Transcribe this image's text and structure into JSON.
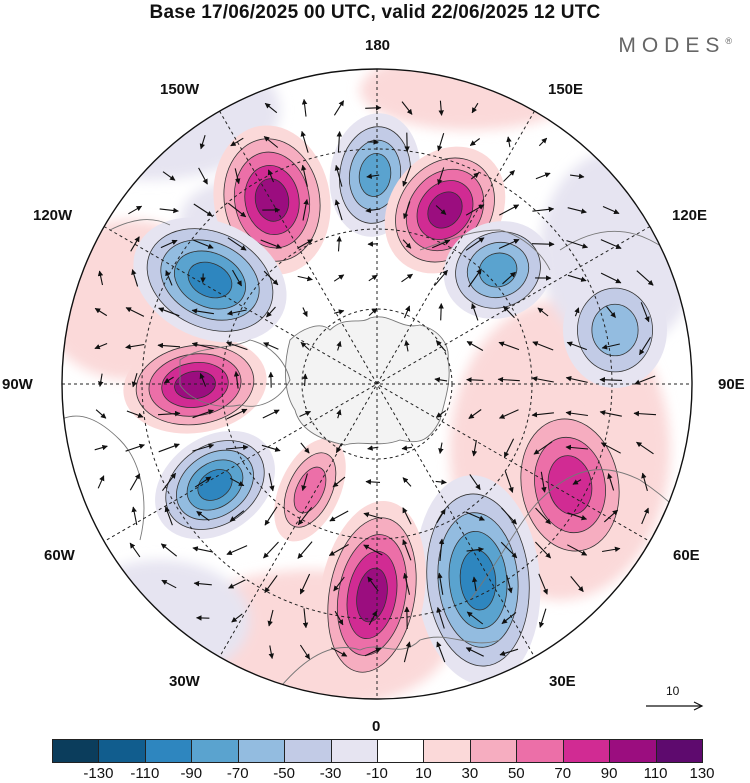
{
  "title": "Base 17/06/2025 00 UTC, valid 22/06/2025 12 UTC",
  "logo": "MODES",
  "logo_mark": "®",
  "longitude_labels": {
    "n180": "180",
    "w150": "150W",
    "e150": "150E",
    "w120": "120W",
    "e120": "120E",
    "w90": "90W",
    "e90": "90E",
    "w60": "60W",
    "e60": "60E",
    "w30": "30W",
    "e30": "30E",
    "s0": "0"
  },
  "vector_scale": {
    "label": "10"
  },
  "colorbar": {
    "colors": [
      "#0b3d5c",
      "#115d8e",
      "#2e86bf",
      "#5aa3cf",
      "#93bce0",
      "#c2cbe6",
      "#e6e4f1",
      "#ffffff",
      "#fbd9d9",
      "#f6adc0",
      "#ec6fa8",
      "#d12b93",
      "#9b0d7f",
      "#5e0a6e"
    ],
    "ticks": [
      "-130",
      "-110",
      "-90",
      "-70",
      "-50",
      "-30",
      "-10",
      "10",
      "30",
      "50",
      "70",
      "90",
      "110",
      "130"
    ]
  },
  "anomaly_centers": [
    {
      "name": "alaska-high",
      "sign": "positive",
      "strength": "strong"
    },
    {
      "name": "bering-low",
      "sign": "negative",
      "strength": "moderate"
    },
    {
      "name": "east-siberia-high",
      "sign": "positive",
      "strength": "strong"
    },
    {
      "name": "central-siberia-low",
      "sign": "negative",
      "strength": "moderate"
    },
    {
      "name": "west-siberia-low",
      "sign": "negative",
      "strength": "weak"
    },
    {
      "name": "central-asia-high",
      "sign": "positive",
      "strength": "moderate"
    },
    {
      "name": "russia-low",
      "sign": "negative",
      "strength": "strong"
    },
    {
      "name": "europe-high",
      "sign": "positive",
      "strength": "strong"
    },
    {
      "name": "atlantic-high",
      "sign": "positive",
      "strength": "weak"
    },
    {
      "name": "labrador-low",
      "sign": "negative",
      "strength": "strong"
    },
    {
      "name": "canada-high",
      "sign": "positive",
      "strength": "strong"
    },
    {
      "name": "pacific-low",
      "sign": "negative",
      "strength": "strong"
    }
  ]
}
